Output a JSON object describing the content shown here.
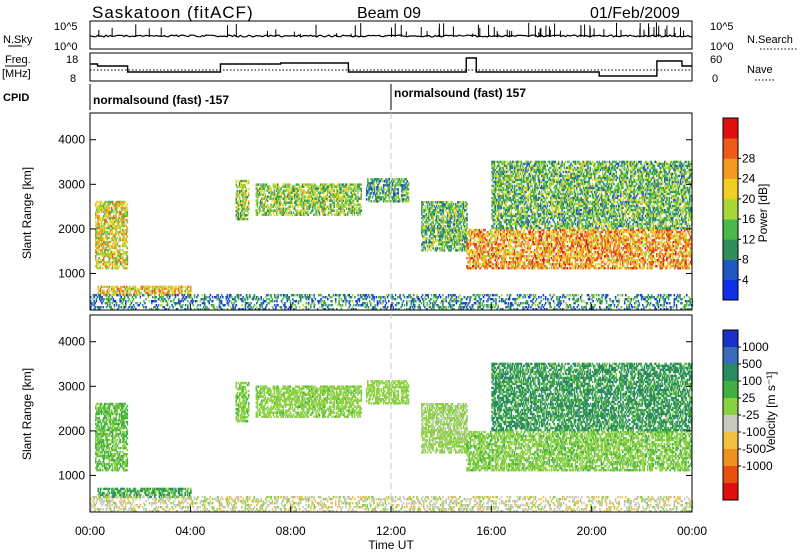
{
  "header": {
    "station": "Saskatoon (fitACF)",
    "beam": "Beam 09",
    "date": "01/Feb/2009"
  },
  "strip_nsky": {
    "left_label": "N.Sky",
    "right_label": "N.Search",
    "left_ticks": [
      "10^5",
      "10^0"
    ],
    "right_ticks": [
      "10^5",
      "10^0"
    ]
  },
  "strip_freq": {
    "left_label_1": "Freq.",
    "left_label_2": "[MHz]",
    "right_label": "Nave",
    "left_ticks": [
      "18",
      "8"
    ],
    "right_ticks": [
      "60",
      "0"
    ]
  },
  "cpid": {
    "label": "CPID",
    "segments": [
      {
        "text": "normalsound (fast) -157",
        "start_hour": 0
      },
      {
        "text": "normalsound (fast) 157",
        "start_hour": 12
      }
    ]
  },
  "x_axis": {
    "title": "Time UT",
    "ticks": [
      "00:00",
      "04:00",
      "08:00",
      "12:00",
      "16:00",
      "20:00",
      "00:00"
    ]
  },
  "power_panel": {
    "ylabel": "Slant Range [km]",
    "yticks": [
      "1000",
      "2000",
      "3000",
      "4000"
    ],
    "colorbar_title": "Power [dB]",
    "colorbar_ticks": [
      "4",
      "8",
      "12",
      "16",
      "20",
      "24",
      "28"
    ],
    "colors": [
      "#1030e8",
      "#2058c0",
      "#2e8f5a",
      "#4cb84a",
      "#a8d838",
      "#f0d020",
      "#f49a20",
      "#ee5a1a",
      "#e01010"
    ]
  },
  "velocity_panel": {
    "ylabel": "Slant Range [km]",
    "yticks": [
      "1000",
      "2000",
      "3000",
      "4000"
    ],
    "colorbar_title": "Velocity  [m s⁻¹]",
    "colorbar_ticks": [
      "1000",
      "500",
      "100",
      "25",
      "-25",
      "-100",
      "-500",
      "-1000"
    ],
    "colors": [
      "#1a2fc8",
      "#3a6ab8",
      "#2a8a60",
      "#40b040",
      "#8ad040",
      "#c8c8c0",
      "#f0c040",
      "#f09020",
      "#e85010",
      "#e01010"
    ]
  },
  "chart_data": {
    "type": "heatmap",
    "title": "Saskatoon (fitACF)   Beam 09   01/Feb/2009",
    "xlabel": "Time UT",
    "ylabel": "Slant Range [km]",
    "xlim": [
      0,
      24
    ],
    "ylim": [
      180,
      4600
    ],
    "series": [
      {
        "name": "Power [dB]",
        "range": [
          0,
          30
        ]
      },
      {
        "name": "Velocity [m s-1]",
        "range": [
          -1000,
          1000
        ]
      }
    ],
    "scatter_regions": [
      {
        "t": [
          0.2,
          1.5
        ],
        "r": [
          1100,
          2600
        ],
        "power": 18,
        "velocity": 30
      },
      {
        "t": [
          0.3,
          4.0
        ],
        "r": [
          500,
          700
        ],
        "power": 20,
        "velocity": 80
      },
      {
        "t": [
          5.8,
          6.3
        ],
        "r": [
          2200,
          3100
        ],
        "power": 14,
        "velocity": 10
      },
      {
        "t": [
          6.6,
          10.8
        ],
        "r": [
          2300,
          3000
        ],
        "power": 14,
        "velocity": 5
      },
      {
        "t": [
          11.0,
          12.7
        ],
        "r": [
          2600,
          3100
        ],
        "power": 10,
        "velocity": 0
      },
      {
        "t": [
          13.2,
          15.0
        ],
        "r": [
          1500,
          2600
        ],
        "power": 12,
        "velocity": -10
      },
      {
        "t": [
          15.0,
          24.0
        ],
        "r": [
          1100,
          2000
        ],
        "power": 22,
        "velocity": 10
      },
      {
        "t": [
          16.0,
          24.0
        ],
        "r": [
          2000,
          3500
        ],
        "power": 12,
        "velocity": 150
      },
      {
        "t": [
          0.0,
          24.0
        ],
        "r": [
          180,
          500
        ],
        "power": 8,
        "velocity": -60
      }
    ]
  }
}
